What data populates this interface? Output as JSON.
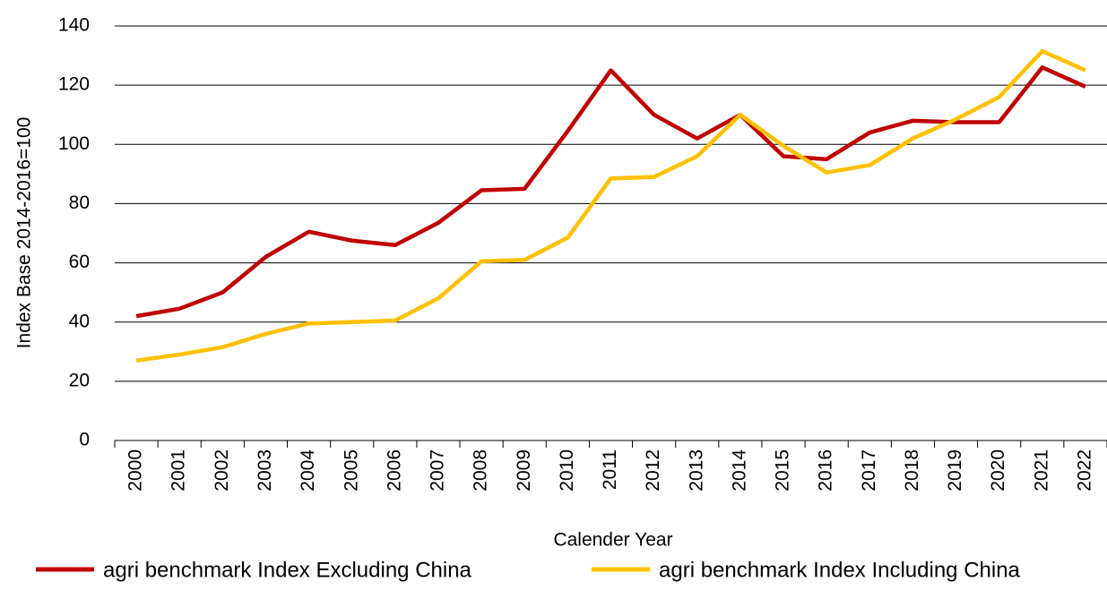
{
  "chart_data": {
    "type": "line",
    "y_label": "Index Base 2014-2016=100",
    "x_label": "Calender Year",
    "categories": [
      "2000",
      "2001",
      "2002",
      "2003",
      "2004",
      "2005",
      "2006",
      "2007",
      "2008",
      "2009",
      "2010",
      "2011",
      "2012",
      "2013",
      "2014",
      "2015",
      "2016",
      "2017",
      "2018",
      "2019",
      "2020",
      "2021",
      "2022"
    ],
    "series": [
      {
        "name": "agri benchmark Index Excluding China",
        "color": "#c00000",
        "values": [
          42,
          44.5,
          50,
          62,
          70.5,
          67.5,
          66,
          73.5,
          84.5,
          85,
          104.5,
          125,
          110,
          102,
          110,
          96,
          95,
          104,
          108,
          107.5,
          107.5,
          126,
          119.5
        ]
      },
      {
        "name": "agri benchmark Index Including China",
        "color": "#ffc000",
        "values": [
          27,
          29,
          31.5,
          36,
          39.5,
          40,
          40.5,
          48,
          60.5,
          61,
          68.5,
          88.5,
          89,
          96,
          110,
          99.5,
          90.5,
          93,
          102,
          108.5,
          116,
          131.5,
          125
        ]
      }
    ],
    "ylim": [
      0,
      140
    ],
    "yticks": [
      0,
      20,
      40,
      60,
      80,
      100,
      120,
      140
    ],
    "grid": true
  }
}
